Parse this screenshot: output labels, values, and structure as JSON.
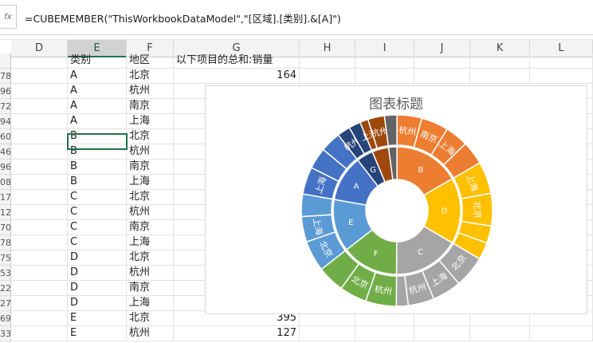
{
  "formula_bar": {
    "fx_label": "fx",
    "formula": "=CUBEMEMBER(\"ThisWorkbookDataModel\",\"[区域].[类别].&[A]\")"
  },
  "columns": [
    "D",
    "E",
    "F",
    "G",
    "H",
    "I",
    "J",
    "K",
    "L"
  ],
  "header_row": {
    "category": "类别",
    "region": "地区",
    "sum": "以下项目的总和:销量"
  },
  "rows": [
    {
      "rownum": "78",
      "category": "A",
      "region": "北京",
      "value": "164"
    },
    {
      "rownum": "96",
      "category": "A",
      "region": "杭州",
      "value": ""
    },
    {
      "rownum": "72",
      "category": "A",
      "region": "南京",
      "value": ""
    },
    {
      "rownum": "94",
      "category": "A",
      "region": "上海",
      "value": ""
    },
    {
      "rownum": "60",
      "category": "B",
      "region": "北京",
      "value": ""
    },
    {
      "rownum": "46",
      "category": "B",
      "region": "杭州",
      "value": ""
    },
    {
      "rownum": "96",
      "category": "B",
      "region": "南京",
      "value": ""
    },
    {
      "rownum": "08",
      "category": "B",
      "region": "上海",
      "value": ""
    },
    {
      "rownum": "17",
      "category": "C",
      "region": "北京",
      "value": ""
    },
    {
      "rownum": "12",
      "category": "C",
      "region": "杭州",
      "value": ""
    },
    {
      "rownum": "70",
      "category": "C",
      "region": "南京",
      "value": ""
    },
    {
      "rownum": "78",
      "category": "C",
      "region": "上海",
      "value": ""
    },
    {
      "rownum": "75",
      "category": "D",
      "region": "北京",
      "value": ""
    },
    {
      "rownum": "53",
      "category": "D",
      "region": "杭州",
      "value": ""
    },
    {
      "rownum": "22",
      "category": "D",
      "region": "南京",
      "value": ""
    },
    {
      "rownum": "27",
      "category": "D",
      "region": "上海",
      "value": ""
    },
    {
      "rownum": "69",
      "category": "E",
      "region": "北京",
      "value": "395"
    },
    {
      "rownum": "33",
      "category": "E",
      "region": "杭州",
      "value": "127"
    }
  ],
  "chart_data": {
    "type": "sunburst",
    "title": "图表标题",
    "inner": [
      {
        "name": "B",
        "color": "#ED7D31",
        "value": 16.7
      },
      {
        "name": "D",
        "color": "#FFC000",
        "value": 16.7
      },
      {
        "name": "C",
        "color": "#A5A5A5",
        "value": 16.7
      },
      {
        "name": "F",
        "color": "#70AD47",
        "value": 14.4
      },
      {
        "name": "E",
        "color": "#5B9BD5",
        "value": 13.3
      },
      {
        "name": "A",
        "color": "#4472C4",
        "value": 11.7
      },
      {
        "name": "G",
        "color": "#264478",
        "value": 4.2
      },
      {
        "name": "",
        "color": "#9E480E",
        "value": 4.2
      },
      {
        "name": "",
        "color": "#636363",
        "value": 2.1
      }
    ],
    "outer": [
      {
        "parent": "B",
        "label": "杭州",
        "value": 4.2
      },
      {
        "parent": "B",
        "label": "南京",
        "value": 4.6
      },
      {
        "parent": "B",
        "label": "上海",
        "value": 3.9
      },
      {
        "parent": "B",
        "label": "",
        "value": 4.0
      },
      {
        "parent": "D",
        "label": "上海",
        "value": 5.4
      },
      {
        "parent": "D",
        "label": "北京",
        "value": 5.5
      },
      {
        "parent": "D",
        "label": "",
        "value": 2.9
      },
      {
        "parent": "D",
        "label": "",
        "value": 2.9
      },
      {
        "parent": "C",
        "label": "北京",
        "value": 5.4
      },
      {
        "parent": "C",
        "label": "上海",
        "value": 4.9
      },
      {
        "parent": "C",
        "label": "杭州",
        "value": 4.4
      },
      {
        "parent": "C",
        "label": "",
        "value": 2.0
      },
      {
        "parent": "F",
        "label": "杭州",
        "value": 5.2
      },
      {
        "parent": "F",
        "label": "北京",
        "value": 4.6
      },
      {
        "parent": "F",
        "label": "",
        "value": 4.6
      },
      {
        "parent": "E",
        "label": "北京",
        "value": 5.2
      },
      {
        "parent": "E",
        "label": "上海",
        "value": 4.3
      },
      {
        "parent": "E",
        "label": "",
        "value": 3.8
      },
      {
        "parent": "A",
        "label": "上海",
        "value": 4.6
      },
      {
        "parent": "A",
        "label": "",
        "value": 3.6
      },
      {
        "parent": "A",
        "label": "",
        "value": 3.5
      },
      {
        "parent": "G",
        "label": "杭州",
        "value": 2.2
      },
      {
        "parent": "G",
        "label": "",
        "value": 2.0
      },
      {
        "parent": "",
        "label": "上海",
        "value": 2.1
      },
      {
        "parent": "",
        "label": "杭州",
        "value": 4.2
      },
      {
        "parent": "",
        "label": "",
        "value": 2.1
      }
    ]
  }
}
